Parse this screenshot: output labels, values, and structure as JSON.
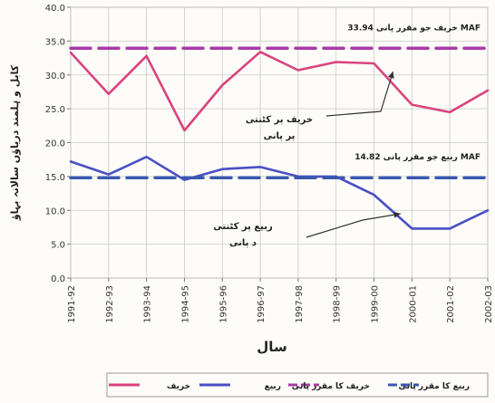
{
  "chart_data": {
    "type": "line",
    "xlabel": "سال",
    "ylabel": "کابل و ہلمند دریاؤں سالانہ بہاؤ",
    "ylim": [
      0,
      40
    ],
    "yticks": [
      "0.0",
      "5.0",
      "10.0",
      "15.0",
      "20.0",
      "25.0",
      "30.0",
      "35.0",
      "40.0"
    ],
    "grid": true,
    "legend_position": "bottom",
    "categories": [
      "1991-92",
      "1992-93",
      "1993-94",
      "1994-95",
      "1995-96",
      "1996-97",
      "1997-98",
      "1998-99",
      "1999-00",
      "2000-01",
      "2001-02",
      "2002-03"
    ],
    "series": [
      {
        "name": "خریف",
        "style": "solid",
        "color": "#d9437f",
        "values": [
          33.3,
          27.2,
          32.8,
          21.8,
          28.5,
          33.4,
          30.7,
          31.9,
          31.7,
          25.6,
          24.5,
          27.7
        ]
      },
      {
        "name": "ربیع",
        "style": "solid",
        "color": "#4a4fc4",
        "values": [
          17.2,
          15.3,
          17.9,
          14.5,
          16.1,
          16.4,
          15.0,
          15.0,
          12.3,
          7.3,
          7.3,
          10.0
        ]
      },
      {
        "name": "خریف کا مقرر پانی",
        "style": "dashed",
        "color": "#a83aa8",
        "values": [
          33.94,
          33.94,
          33.94,
          33.94,
          33.94,
          33.94,
          33.94,
          33.94,
          33.94,
          33.94,
          33.94,
          33.94
        ]
      },
      {
        "name": "ربیع کا مقرر پانی",
        "style": "dashed",
        "color": "#3a58b0",
        "values": [
          14.82,
          14.82,
          14.82,
          14.82,
          14.82,
          14.82,
          14.82,
          14.82,
          14.82,
          14.82,
          14.82,
          14.82
        ]
      }
    ],
    "annotations": [
      {
        "text": "خریف جو مقرر پانی 33.94 MAF",
        "anchor_series": 2
      },
      {
        "text": "ربیع جو مقرر پانی 14.82 MAF",
        "anchor_series": 3
      },
      {
        "text": "خریف پر کٹنتی",
        "text2": "پر پانی",
        "arrow_to": [
          8.5,
          30.5
        ]
      },
      {
        "text": "ربیع پر کٹنتی",
        "text2": "د پانی",
        "arrow_to": [
          8.7,
          9.5
        ]
      }
    ]
  }
}
